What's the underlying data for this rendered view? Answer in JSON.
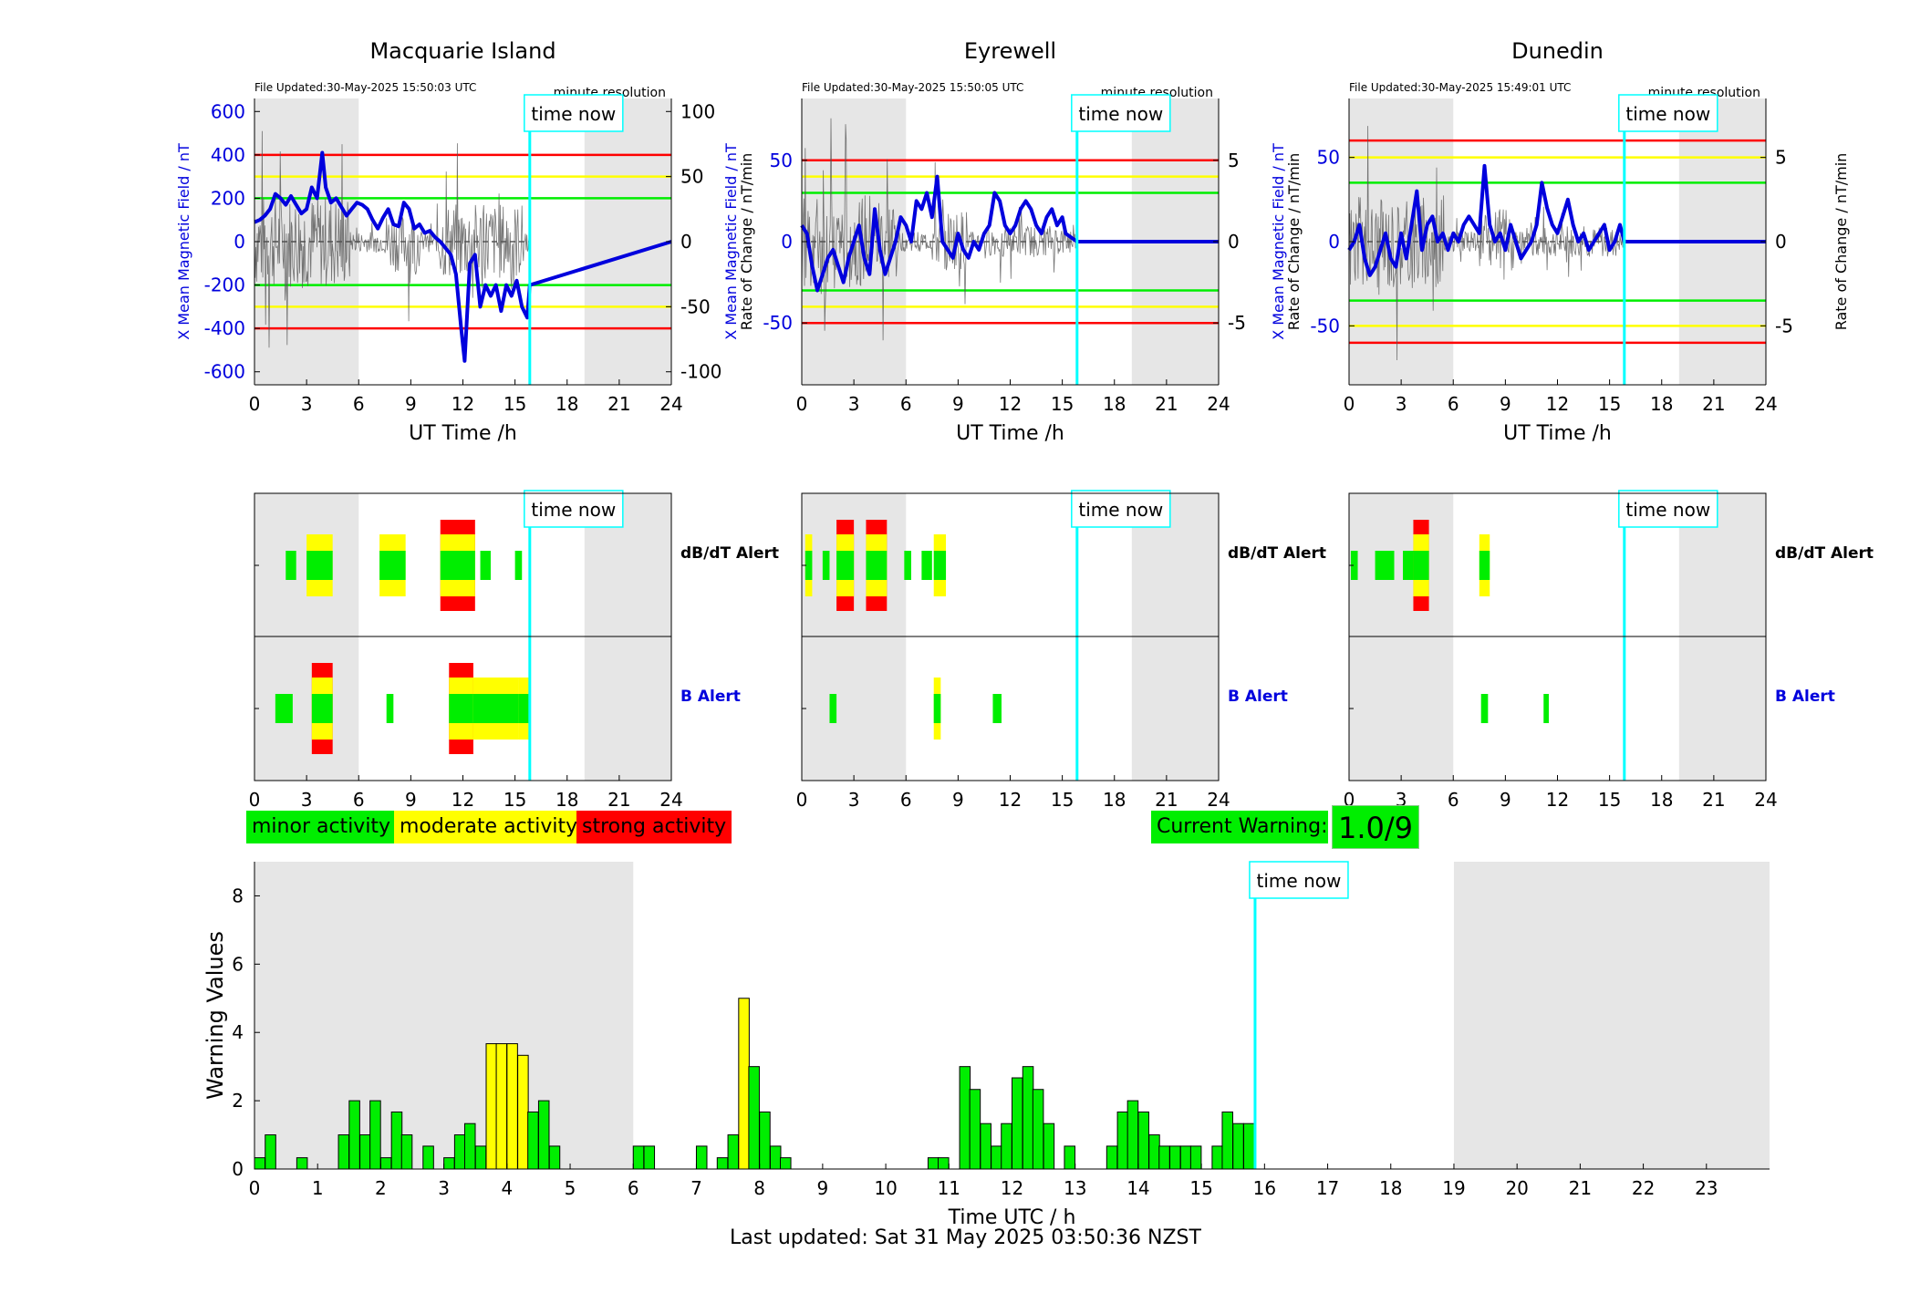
{
  "colors": {
    "minor": "#00ee00",
    "moderate": "#ffff00",
    "strong": "#ff0000",
    "field": "#0000dd",
    "rate": "#555555",
    "time_now": "#00ffff",
    "night": "#e6e6e6"
  },
  "time_now_label": "time now",
  "time_now_h": 15.85,
  "stations": [
    {
      "name": "Macquarie Island",
      "file_updated": "File Updated:30-May-2025 15:50:03 UTC",
      "resolution": "minute resolution",
      "ylabel_left": "X Mean Magnetic Field / nT",
      "ylabel_right": "Rate of Change / nT/min",
      "xlabel": "UT Time /h",
      "ylim_left": [
        -660,
        660
      ],
      "yticks_left": [
        -600,
        -400,
        -200,
        0,
        200,
        400,
        600
      ],
      "ylim_right": [
        -110,
        110
      ],
      "yticks_right": [
        -100,
        -50,
        0,
        50,
        100
      ],
      "xticks": [
        0,
        3,
        6,
        9,
        12,
        15,
        18,
        21,
        24
      ],
      "night": [
        [
          0,
          6
        ],
        [
          19,
          24
        ]
      ],
      "thresholds": [
        {
          "level": "strong",
          "values": [
            400,
            -400
          ]
        },
        {
          "level": "moderate",
          "values": [
            300,
            -300
          ]
        },
        {
          "level": "minor",
          "values": [
            200,
            -200
          ]
        }
      ],
      "field_series": {
        "x": [
          0,
          0.3,
          0.6,
          0.9,
          1.2,
          1.5,
          1.8,
          2.1,
          2.4,
          2.7,
          3.0,
          3.3,
          3.6,
          3.9,
          4.1,
          4.4,
          4.7,
          5.0,
          5.3,
          5.6,
          5.9,
          6.2,
          6.5,
          6.8,
          7.1,
          7.4,
          7.7,
          8.0,
          8.3,
          8.6,
          8.9,
          9.2,
          9.5,
          9.8,
          10.1,
          10.4,
          10.7,
          11.0,
          11.3,
          11.6,
          11.9,
          12.1,
          12.4,
          12.7,
          13.0,
          13.3,
          13.6,
          13.9,
          14.2,
          14.5,
          14.8,
          15.1,
          15.4,
          15.7,
          15.85,
          24
        ],
        "y": [
          90,
          100,
          120,
          150,
          220,
          200,
          170,
          210,
          170,
          130,
          150,
          250,
          200,
          410,
          250,
          180,
          200,
          160,
          120,
          150,
          180,
          170,
          150,
          100,
          60,
          110,
          150,
          80,
          70,
          180,
          150,
          60,
          80,
          40,
          50,
          20,
          0,
          -30,
          -60,
          -150,
          -400,
          -550,
          -100,
          -60,
          -300,
          -200,
          -250,
          -200,
          -320,
          -200,
          -250,
          -180,
          -300,
          -350,
          -200,
          0
        ]
      },
      "dbdt_alert": [
        {
          "start": 1.8,
          "end": 2.4,
          "level": "minor"
        },
        {
          "start": 3.0,
          "end": 4.5,
          "level": "moderate"
        },
        {
          "start": 7.2,
          "end": 8.7,
          "level": "moderate"
        },
        {
          "start": 10.7,
          "end": 12.7,
          "level": "strong"
        },
        {
          "start": 13.0,
          "end": 13.6,
          "level": "minor"
        },
        {
          "start": 15.0,
          "end": 15.4,
          "level": "minor"
        }
      ],
      "b_alert": [
        {
          "start": 1.2,
          "end": 2.2,
          "level": "minor"
        },
        {
          "start": 3.3,
          "end": 4.5,
          "level": "strong"
        },
        {
          "start": 7.6,
          "end": 8.0,
          "level": "minor"
        },
        {
          "start": 11.2,
          "end": 12.6,
          "level": "strong"
        },
        {
          "start": 12.6,
          "end": 15.2,
          "level": "moderate"
        },
        {
          "start": 15.2,
          "end": 15.8,
          "level": "moderate"
        }
      ]
    },
    {
      "name": "Eyrewell",
      "file_updated": "File Updated:30-May-2025 15:50:05 UTC",
      "resolution": "minute resolution",
      "ylabel_left": "X Mean Magnetic Field / nT",
      "ylabel_right": "Rate of Change / nT/min",
      "xlabel": "UT Time /h",
      "ylim_left": [
        -88,
        88
      ],
      "yticks_left": [
        -50,
        0,
        50
      ],
      "ylim_right": [
        -8.8,
        8.8
      ],
      "yticks_right": [
        -5,
        0,
        5
      ],
      "xticks": [
        0,
        3,
        6,
        9,
        12,
        15,
        18,
        21,
        24
      ],
      "night": [
        [
          0,
          6
        ],
        [
          19,
          24
        ]
      ],
      "thresholds": [
        {
          "level": "strong",
          "values": [
            50,
            -50
          ]
        },
        {
          "level": "moderate",
          "values": [
            40,
            -40
          ]
        },
        {
          "level": "minor",
          "values": [
            30,
            -30
          ]
        }
      ],
      "field_series": {
        "x": [
          0,
          0.3,
          0.6,
          0.9,
          1.2,
          1.5,
          1.8,
          2.1,
          2.4,
          2.7,
          3.0,
          3.3,
          3.6,
          3.9,
          4.2,
          4.5,
          4.8,
          5.1,
          5.4,
          5.7,
          6.0,
          6.3,
          6.6,
          6.9,
          7.2,
          7.5,
          7.8,
          8.1,
          8.4,
          8.7,
          9.0,
          9.3,
          9.6,
          9.9,
          10.2,
          10.5,
          10.8,
          11.1,
          11.4,
          11.7,
          12.0,
          12.3,
          12.6,
          12.9,
          13.2,
          13.5,
          13.8,
          14.1,
          14.4,
          14.7,
          15.0,
          15.2,
          15.85,
          24
        ],
        "y": [
          10,
          5,
          -15,
          -30,
          -20,
          -10,
          -5,
          -15,
          -25,
          -10,
          0,
          10,
          -10,
          -20,
          20,
          -5,
          -20,
          -10,
          0,
          15,
          10,
          0,
          25,
          20,
          30,
          15,
          40,
          0,
          -5,
          -10,
          5,
          -5,
          -10,
          0,
          -5,
          5,
          10,
          30,
          25,
          10,
          5,
          10,
          20,
          25,
          20,
          10,
          5,
          15,
          20,
          10,
          15,
          5,
          0,
          0
        ]
      },
      "dbdt_alert": [
        {
          "start": 0.2,
          "end": 0.6,
          "level": "moderate"
        },
        {
          "start": 1.2,
          "end": 1.6,
          "level": "minor"
        },
        {
          "start": 2.0,
          "end": 3.0,
          "level": "strong"
        },
        {
          "start": 3.7,
          "end": 4.9,
          "level": "strong"
        },
        {
          "start": 5.9,
          "end": 6.3,
          "level": "minor"
        },
        {
          "start": 6.9,
          "end": 7.5,
          "level": "minor"
        },
        {
          "start": 7.6,
          "end": 8.3,
          "level": "moderate"
        }
      ],
      "b_alert": [
        {
          "start": 1.6,
          "end": 2.0,
          "level": "minor"
        },
        {
          "start": 7.6,
          "end": 8.0,
          "level": "moderate"
        },
        {
          "start": 11.0,
          "end": 11.5,
          "level": "minor"
        }
      ]
    },
    {
      "name": "Dunedin",
      "file_updated": "File Updated:30-May-2025 15:49:01 UTC",
      "resolution": "minute resolution",
      "ylabel_left": "X Mean Magnetic Field / nT",
      "ylabel_right": "Rate of Change / nT/min",
      "xlabel": "UT Time /h",
      "ylim_left": [
        -85,
        85
      ],
      "yticks_left": [
        -50,
        0,
        50
      ],
      "ylim_right": [
        -8.5,
        8.5
      ],
      "yticks_right": [
        -5,
        0,
        5
      ],
      "xticks": [
        0,
        3,
        6,
        9,
        12,
        15,
        18,
        21,
        24
      ],
      "night": [
        [
          0,
          6
        ],
        [
          19,
          24
        ]
      ],
      "thresholds": [
        {
          "level": "strong",
          "values": [
            60,
            -60
          ]
        },
        {
          "level": "moderate",
          "values": [
            50,
            -50
          ]
        },
        {
          "level": "minor",
          "values": [
            35,
            -35
          ]
        }
      ],
      "field_series": {
        "x": [
          0,
          0.3,
          0.6,
          0.9,
          1.2,
          1.5,
          1.8,
          2.1,
          2.4,
          2.7,
          3.0,
          3.3,
          3.6,
          3.9,
          4.2,
          4.5,
          4.8,
          5.1,
          5.4,
          5.7,
          6.0,
          6.3,
          6.6,
          6.9,
          7.2,
          7.5,
          7.8,
          8.1,
          8.4,
          8.7,
          9.0,
          9.3,
          9.6,
          9.9,
          10.2,
          10.5,
          10.8,
          11.1,
          11.4,
          11.7,
          12.0,
          12.3,
          12.6,
          12.9,
          13.2,
          13.5,
          13.8,
          14.1,
          14.4,
          14.7,
          15.0,
          15.3,
          15.6,
          15.85,
          24
        ],
        "y": [
          -5,
          0,
          10,
          -10,
          -20,
          -15,
          -5,
          5,
          -10,
          -15,
          5,
          -10,
          10,
          30,
          -5,
          10,
          15,
          0,
          5,
          -5,
          5,
          0,
          10,
          15,
          10,
          5,
          45,
          10,
          0,
          5,
          -5,
          10,
          0,
          -10,
          -5,
          0,
          10,
          35,
          20,
          10,
          5,
          15,
          25,
          10,
          0,
          5,
          -5,
          0,
          5,
          10,
          -5,
          0,
          10,
          0,
          0
        ]
      },
      "dbdt_alert": [
        {
          "start": 0.1,
          "end": 0.5,
          "level": "minor"
        },
        {
          "start": 1.5,
          "end": 2.6,
          "level": "minor"
        },
        {
          "start": 3.1,
          "end": 4.1,
          "level": "minor"
        },
        {
          "start": 3.7,
          "end": 4.6,
          "level": "strong"
        },
        {
          "start": 7.5,
          "end": 8.1,
          "level": "moderate"
        }
      ],
      "b_alert": [
        {
          "start": 7.6,
          "end": 8.0,
          "level": "minor"
        },
        {
          "start": 11.2,
          "end": 11.5,
          "level": "minor"
        }
      ]
    }
  ],
  "alert_labels": {
    "dbdt": "dB/dT Alert",
    "b": "B Alert"
  },
  "legend": {
    "minor": "minor activity",
    "moderate": "moderate activity",
    "strong": "strong activity"
  },
  "current_warning": {
    "label": "Current Warning:",
    "value": "1.0/9"
  },
  "chart_data": {
    "type": "bar",
    "xlabel": "Time UTC / h",
    "ylabel": "Warning Values",
    "xlim": [
      0,
      24
    ],
    "ylim": [
      0,
      9
    ],
    "xticks": [
      0,
      1,
      2,
      3,
      4,
      5,
      6,
      7,
      8,
      9,
      10,
      11,
      12,
      13,
      14,
      15,
      16,
      17,
      18,
      19,
      20,
      21,
      22,
      23
    ],
    "yticks": [
      0,
      2,
      4,
      6,
      8
    ],
    "night": [
      [
        0,
        6
      ],
      [
        19,
        24
      ]
    ],
    "bin_width_h": 0.1667,
    "bars": [
      {
        "x": 0.0,
        "value": 0.33,
        "level": "minor"
      },
      {
        "x": 0.17,
        "value": 1.0,
        "level": "minor"
      },
      {
        "x": 0.67,
        "value": 0.33,
        "level": "minor"
      },
      {
        "x": 1.33,
        "value": 1.0,
        "level": "minor"
      },
      {
        "x": 1.5,
        "value": 2.0,
        "level": "minor"
      },
      {
        "x": 1.67,
        "value": 1.0,
        "level": "minor"
      },
      {
        "x": 1.83,
        "value": 2.0,
        "level": "minor"
      },
      {
        "x": 2.0,
        "value": 0.33,
        "level": "minor"
      },
      {
        "x": 2.17,
        "value": 1.67,
        "level": "minor"
      },
      {
        "x": 2.33,
        "value": 1.0,
        "level": "minor"
      },
      {
        "x": 2.67,
        "value": 0.67,
        "level": "minor"
      },
      {
        "x": 3.0,
        "value": 0.33,
        "level": "minor"
      },
      {
        "x": 3.17,
        "value": 1.0,
        "level": "minor"
      },
      {
        "x": 3.33,
        "value": 1.33,
        "level": "minor"
      },
      {
        "x": 3.5,
        "value": 0.67,
        "level": "minor"
      },
      {
        "x": 3.67,
        "value": 3.67,
        "level": "moderate"
      },
      {
        "x": 3.83,
        "value": 3.67,
        "level": "moderate"
      },
      {
        "x": 4.0,
        "value": 3.67,
        "level": "moderate"
      },
      {
        "x": 4.17,
        "value": 3.33,
        "level": "moderate"
      },
      {
        "x": 4.33,
        "value": 1.67,
        "level": "minor"
      },
      {
        "x": 4.5,
        "value": 2.0,
        "level": "minor"
      },
      {
        "x": 4.67,
        "value": 0.67,
        "level": "minor"
      },
      {
        "x": 6.0,
        "value": 0.67,
        "level": "minor"
      },
      {
        "x": 6.17,
        "value": 0.67,
        "level": "minor"
      },
      {
        "x": 7.0,
        "value": 0.67,
        "level": "minor"
      },
      {
        "x": 7.33,
        "value": 0.33,
        "level": "minor"
      },
      {
        "x": 7.5,
        "value": 1.0,
        "level": "minor"
      },
      {
        "x": 7.67,
        "value": 5.0,
        "level": "moderate"
      },
      {
        "x": 7.83,
        "value": 3.0,
        "level": "minor"
      },
      {
        "x": 8.0,
        "value": 1.67,
        "level": "minor"
      },
      {
        "x": 8.17,
        "value": 0.67,
        "level": "minor"
      },
      {
        "x": 8.33,
        "value": 0.33,
        "level": "minor"
      },
      {
        "x": 10.67,
        "value": 0.33,
        "level": "minor"
      },
      {
        "x": 10.83,
        "value": 0.33,
        "level": "minor"
      },
      {
        "x": 11.17,
        "value": 3.0,
        "level": "minor"
      },
      {
        "x": 11.33,
        "value": 2.33,
        "level": "minor"
      },
      {
        "x": 11.5,
        "value": 1.33,
        "level": "minor"
      },
      {
        "x": 11.67,
        "value": 0.67,
        "level": "minor"
      },
      {
        "x": 11.83,
        "value": 1.33,
        "level": "minor"
      },
      {
        "x": 12.0,
        "value": 2.67,
        "level": "minor"
      },
      {
        "x": 12.17,
        "value": 3.0,
        "level": "minor"
      },
      {
        "x": 12.33,
        "value": 2.33,
        "level": "minor"
      },
      {
        "x": 12.5,
        "value": 1.33,
        "level": "minor"
      },
      {
        "x": 12.83,
        "value": 0.67,
        "level": "minor"
      },
      {
        "x": 13.5,
        "value": 0.67,
        "level": "minor"
      },
      {
        "x": 13.67,
        "value": 1.67,
        "level": "minor"
      },
      {
        "x": 13.83,
        "value": 2.0,
        "level": "minor"
      },
      {
        "x": 14.0,
        "value": 1.67,
        "level": "minor"
      },
      {
        "x": 14.17,
        "value": 1.0,
        "level": "minor"
      },
      {
        "x": 14.33,
        "value": 0.67,
        "level": "minor"
      },
      {
        "x": 14.5,
        "value": 0.67,
        "level": "minor"
      },
      {
        "x": 14.67,
        "value": 0.67,
        "level": "minor"
      },
      {
        "x": 14.83,
        "value": 0.67,
        "level": "minor"
      },
      {
        "x": 15.17,
        "value": 0.67,
        "level": "minor"
      },
      {
        "x": 15.33,
        "value": 1.67,
        "level": "minor"
      },
      {
        "x": 15.5,
        "value": 1.33,
        "level": "minor"
      },
      {
        "x": 15.67,
        "value": 1.33,
        "level": "minor"
      }
    ]
  },
  "last_updated": "Last updated: Sat 31 May 2025 03:50:36 NZST"
}
